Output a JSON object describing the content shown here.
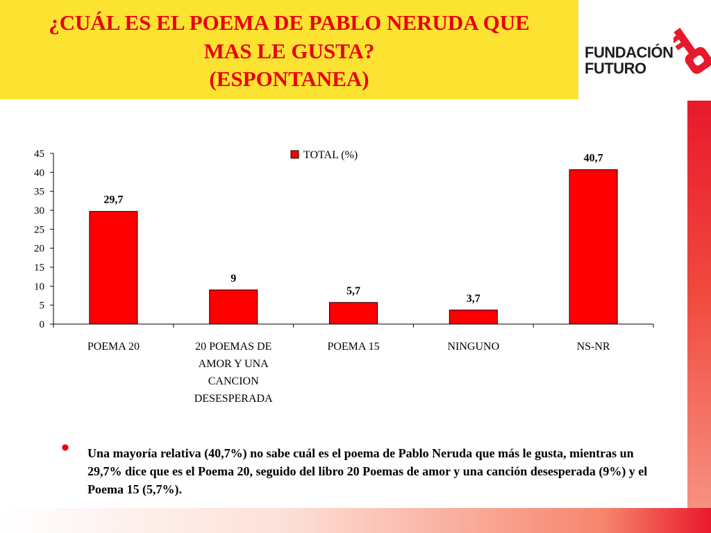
{
  "slide": {
    "title_lines": [
      "¿CUÁL ES EL POEMA DE PABLO NERUDA QUE",
      "MAS LE GUSTA?",
      "(ESPONTANEA)"
    ],
    "logo_lines": [
      "FUNDACIÓN",
      "FUTURO"
    ],
    "bullet_text": "Una mayoría relativa (40,7%) no sabe cuál es el poema de Pablo Neruda que más le gusta, mientras un 29,7% dice que es el Poema 20, seguido del libro 20 Poemas de amor y una canción desesperada (9%) y el Poema 15 (5,7%).",
    "colors": {
      "title_bg": "#fce332",
      "title_text": "#e8000b",
      "bar": "#ff0000",
      "accent": "#e8192c"
    }
  },
  "chart_data": {
    "type": "bar",
    "categories": [
      "POEMA 20",
      "20 POEMAS DE AMOR Y UNA CANCION DESESPERADA",
      "POEMA 15",
      "NINGUNO",
      "NS-NR"
    ],
    "category_lines": [
      [
        "POEMA 20"
      ],
      [
        "20 POEMAS DE",
        "AMOR Y UNA",
        "CANCION",
        "DESESPERADA"
      ],
      [
        "POEMA 15"
      ],
      [
        "NINGUNO"
      ],
      [
        "NS-NR"
      ]
    ],
    "series": [
      {
        "name": "TOTAL (%)",
        "values": [
          29.7,
          9,
          5.7,
          3.7,
          40.7
        ]
      }
    ],
    "data_labels": [
      "29,7",
      "9",
      "5,7",
      "3,7",
      "40,7"
    ],
    "yticks": [
      0,
      5,
      10,
      15,
      20,
      25,
      30,
      35,
      40,
      45
    ],
    "ylim": [
      0,
      45
    ],
    "grid": false,
    "legend": "top"
  }
}
